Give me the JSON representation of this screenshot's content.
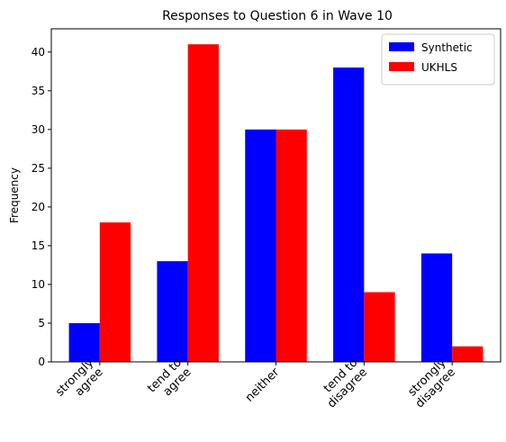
{
  "chart_data": {
    "type": "bar",
    "title": "Responses to Question 6 in Wave 10",
    "xlabel": "",
    "ylabel": "Frequency",
    "categories": [
      [
        "strongly",
        "agree"
      ],
      [
        "tend to",
        "agree"
      ],
      [
        "neither"
      ],
      [
        "tend to",
        "disagree"
      ],
      [
        "strongly",
        "disagree"
      ]
    ],
    "series": [
      {
        "name": "Synthetic",
        "color": "#0000ff",
        "values": [
          5,
          13,
          30,
          38,
          14
        ]
      },
      {
        "name": "UKHLS",
        "color": "#ff0000",
        "values": [
          18,
          41,
          30,
          9,
          2
        ]
      }
    ],
    "ylim": [
      0,
      43
    ],
    "yticks": [
      0,
      5,
      10,
      15,
      20,
      25,
      30,
      35,
      40
    ],
    "grid": false,
    "legend_position": "top-right"
  }
}
